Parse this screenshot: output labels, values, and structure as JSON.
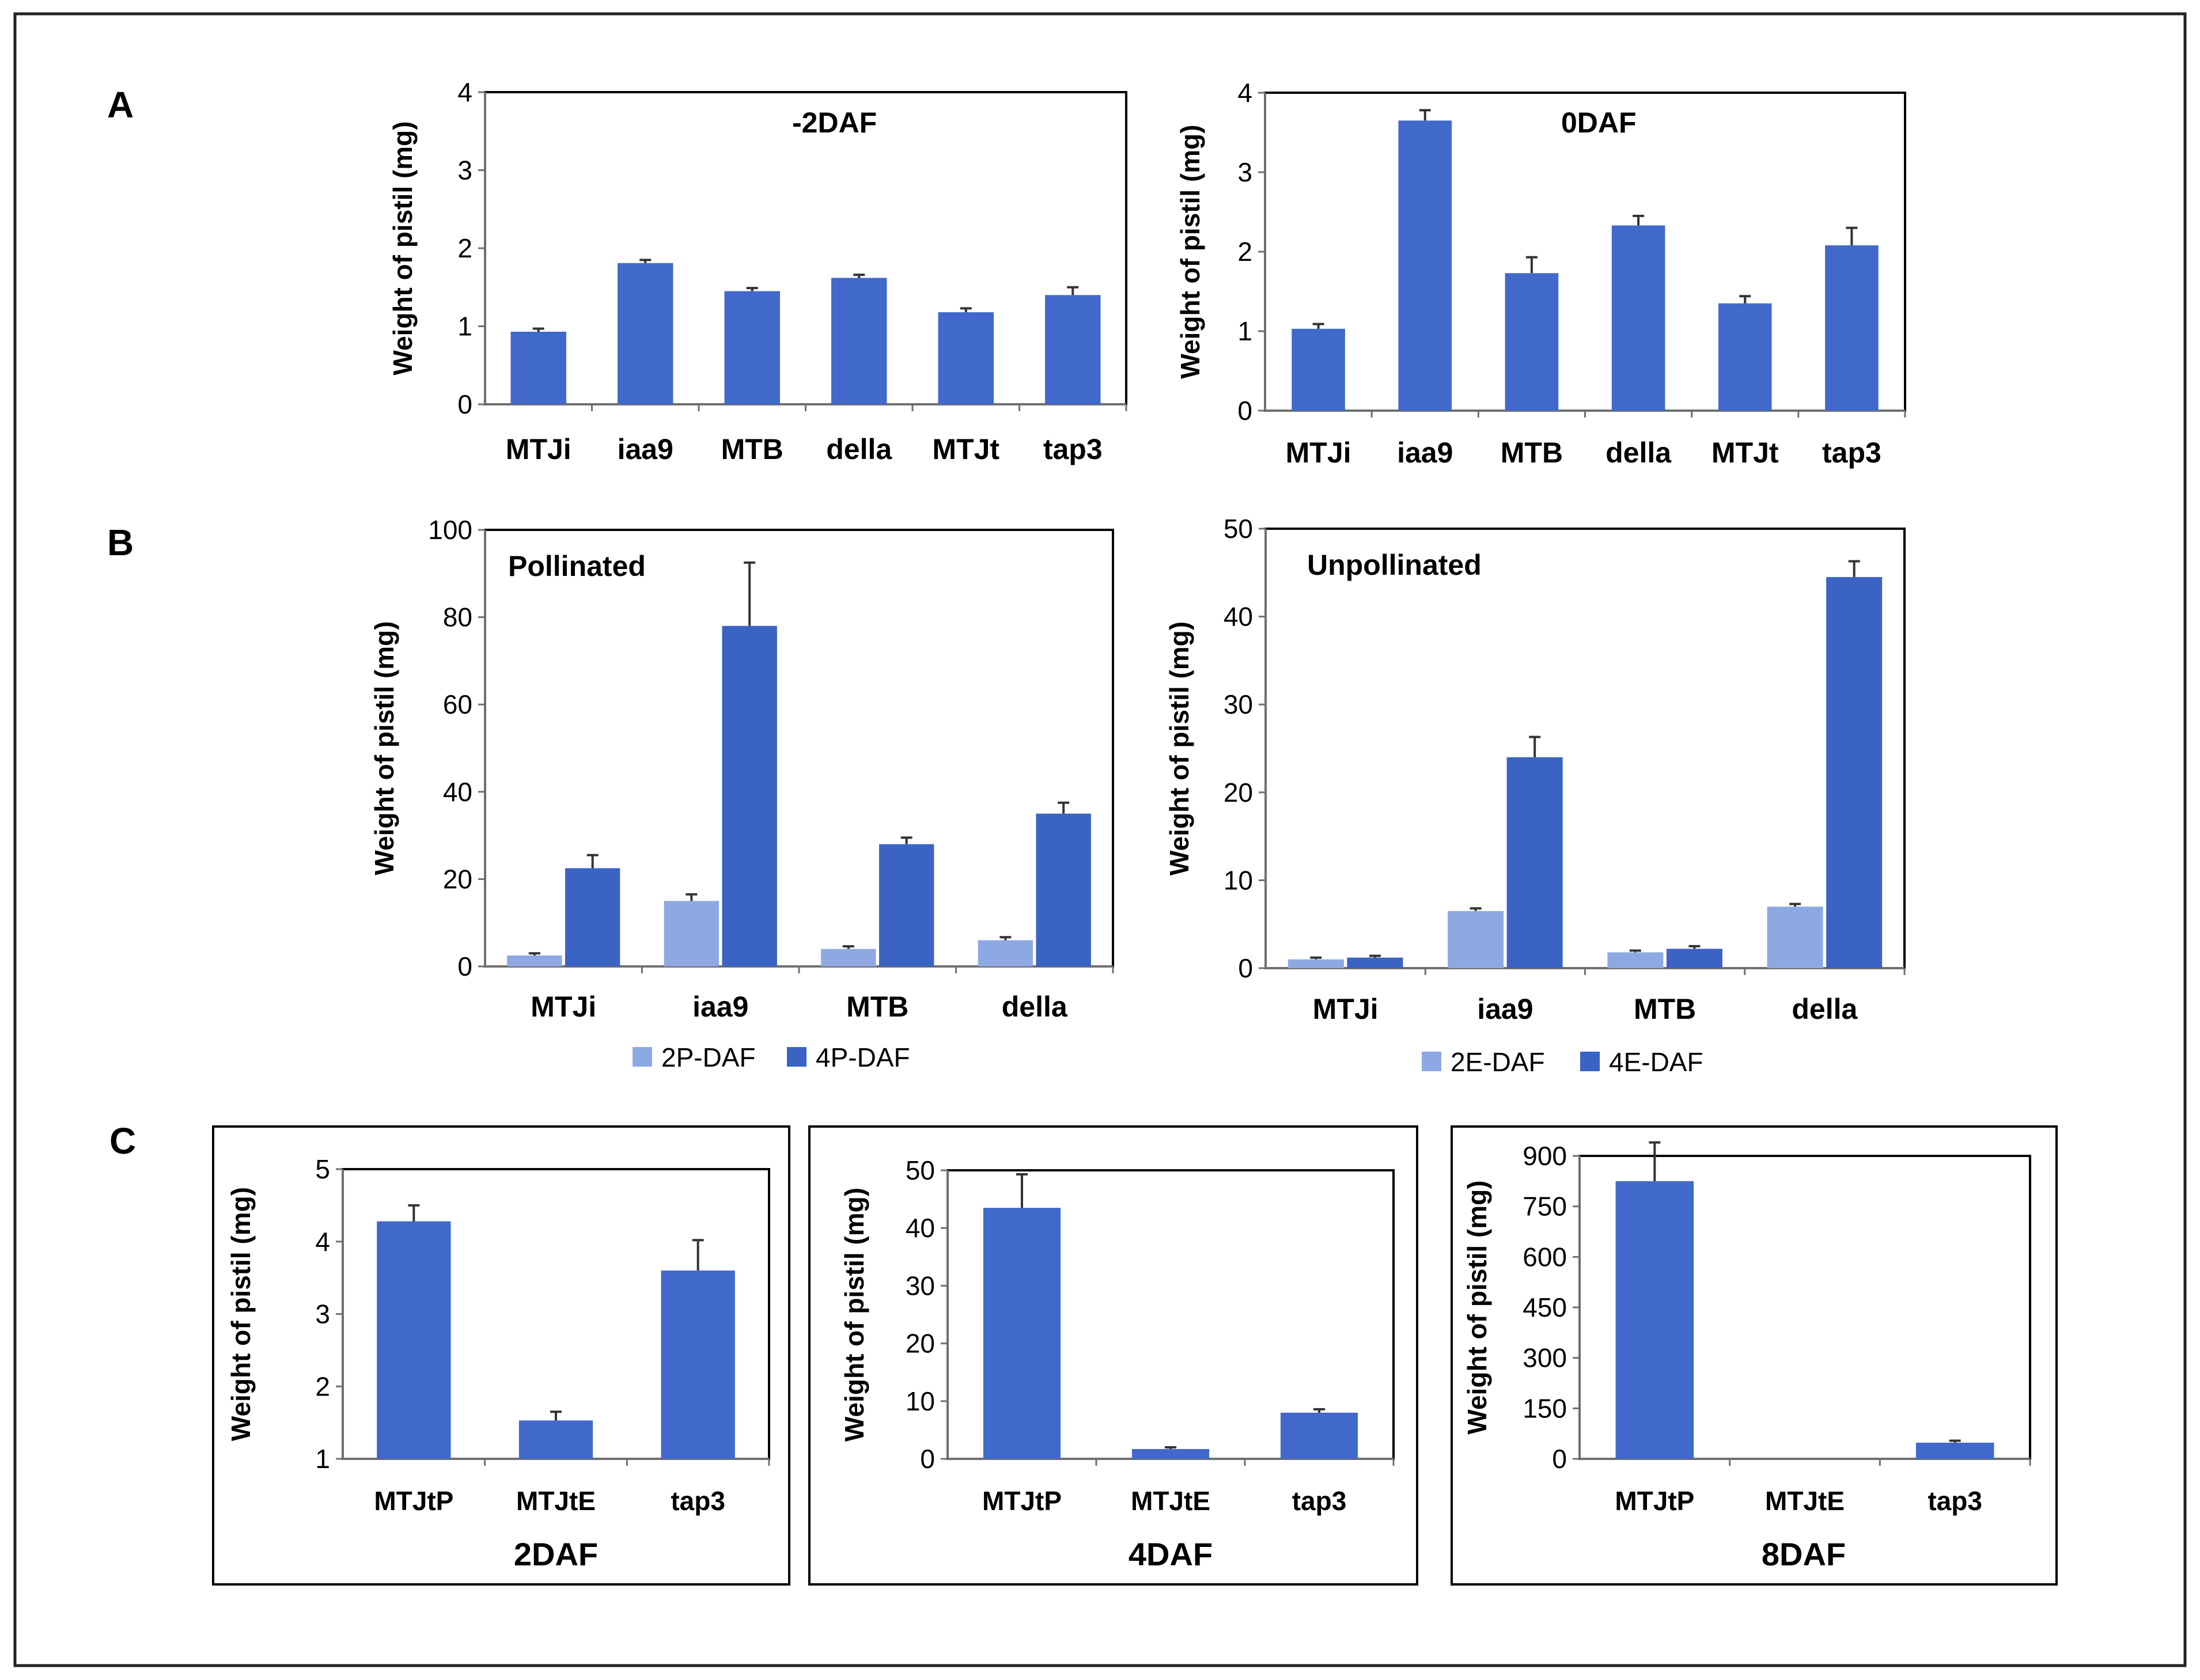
{
  "panels": [
    "A",
    "B",
    "C"
  ],
  "colors": {
    "dark": "#3a63c4",
    "light": "#8ea9e2",
    "bar": "#4169cc"
  },
  "chart_data": [
    {
      "id": "A1",
      "panel": "A",
      "type": "bar",
      "title": "-2DAF",
      "xlabel": "",
      "ylabel": "Weight of pistil (mg)",
      "categories": [
        "MTJi",
        "iaa9",
        "MTB",
        "della",
        "MTJt",
        "tap3"
      ],
      "series": [
        {
          "name": "-2DAF",
          "values": [
            0.93,
            1.81,
            1.45,
            1.62,
            1.18,
            1.4
          ],
          "errors": [
            0.04,
            0.04,
            0.04,
            0.04,
            0.05,
            0.1
          ]
        }
      ],
      "ylim": [
        0,
        4
      ],
      "yticks": [
        0,
        1,
        2,
        3,
        4
      ]
    },
    {
      "id": "A2",
      "panel": "A",
      "type": "bar",
      "title": "0DAF",
      "xlabel": "",
      "ylabel": "Weight of pistil (mg)",
      "categories": [
        "MTJi",
        "iaa9",
        "MTB",
        "della",
        "MTJt",
        "tap3"
      ],
      "series": [
        {
          "name": "0DAF",
          "values": [
            1.03,
            3.65,
            1.73,
            2.33,
            1.35,
            2.08
          ],
          "errors": [
            0.06,
            0.13,
            0.2,
            0.12,
            0.09,
            0.22
          ]
        }
      ],
      "ylim": [
        0,
        4
      ],
      "yticks": [
        0,
        1,
        2,
        3,
        4
      ]
    },
    {
      "id": "B1",
      "panel": "B",
      "type": "bar",
      "title": "Pollinated",
      "xlabel": "",
      "ylabel": "Weight of pistil (mg)",
      "categories": [
        "MTJi",
        "iaa9",
        "MTB",
        "della"
      ],
      "series": [
        {
          "name": "2P-DAF",
          "values": [
            2.5,
            15.0,
            4.0,
            6.0
          ],
          "errors": [
            0.5,
            1.5,
            0.6,
            0.7
          ]
        },
        {
          "name": "4P-DAF",
          "values": [
            22.5,
            78.0,
            28.0,
            35.0
          ],
          "errors": [
            3.0,
            14.5,
            1.5,
            2.5
          ]
        }
      ],
      "ylim": [
        0,
        100
      ],
      "yticks": [
        0,
        20,
        40,
        60,
        80,
        100
      ],
      "legend": [
        "2P-DAF",
        "4P-DAF"
      ]
    },
    {
      "id": "B2",
      "panel": "B",
      "type": "bar",
      "title": "Unpollinated",
      "xlabel": "",
      "ylabel": "Weight of pistil (mg)",
      "categories": [
        "MTJi",
        "iaa9",
        "MTB",
        "della"
      ],
      "series": [
        {
          "name": "2E-DAF",
          "values": [
            1.0,
            6.5,
            1.8,
            7.0
          ],
          "errors": [
            0.2,
            0.3,
            0.2,
            0.3
          ]
        },
        {
          "name": "4E-DAF",
          "values": [
            1.2,
            24.0,
            2.2,
            44.5
          ],
          "errors": [
            0.2,
            2.3,
            0.3,
            1.8
          ]
        }
      ],
      "ylim": [
        0,
        50
      ],
      "yticks": [
        0,
        10,
        20,
        30,
        40,
        50
      ],
      "legend": [
        "2E-DAF",
        "4E-DAF"
      ]
    },
    {
      "id": "C1",
      "panel": "C",
      "type": "bar",
      "title": "",
      "xlabel": "2DAF",
      "ylabel": "Weight of pistil (mg)",
      "categories": [
        "MTJtP",
        "MTJtE",
        "tap3"
      ],
      "series": [
        {
          "name": "2DAF",
          "values": [
            4.28,
            1.53,
            3.6
          ],
          "errors": [
            0.22,
            0.12,
            0.42
          ]
        }
      ],
      "ylim": [
        1,
        5
      ],
      "yticks": [
        1,
        2,
        3,
        4,
        5
      ]
    },
    {
      "id": "C2",
      "panel": "C",
      "type": "bar",
      "title": "",
      "xlabel": "4DAF",
      "ylabel": "Weight of pistil (mg)",
      "categories": [
        "MTJtP",
        "MTJtE",
        "tap3"
      ],
      "series": [
        {
          "name": "4DAF",
          "values": [
            43.5,
            1.7,
            8.0
          ],
          "errors": [
            5.8,
            0.3,
            0.6
          ]
        }
      ],
      "ylim": [
        0,
        50
      ],
      "yticks": [
        0,
        10,
        20,
        30,
        40,
        50
      ]
    },
    {
      "id": "C3",
      "panel": "C",
      "type": "bar",
      "title": "",
      "xlabel": "8DAF",
      "ylabel": "Weight of pistil (mg)",
      "categories": [
        "MTJtP",
        "MTJtE",
        "tap3"
      ],
      "series": [
        {
          "name": "8DAF",
          "values": [
            825,
            0,
            48
          ],
          "errors": [
            115,
            0,
            6
          ]
        }
      ],
      "ylim": [
        0,
        900
      ],
      "yticks": [
        0,
        150,
        300,
        450,
        600,
        750,
        900
      ]
    }
  ]
}
